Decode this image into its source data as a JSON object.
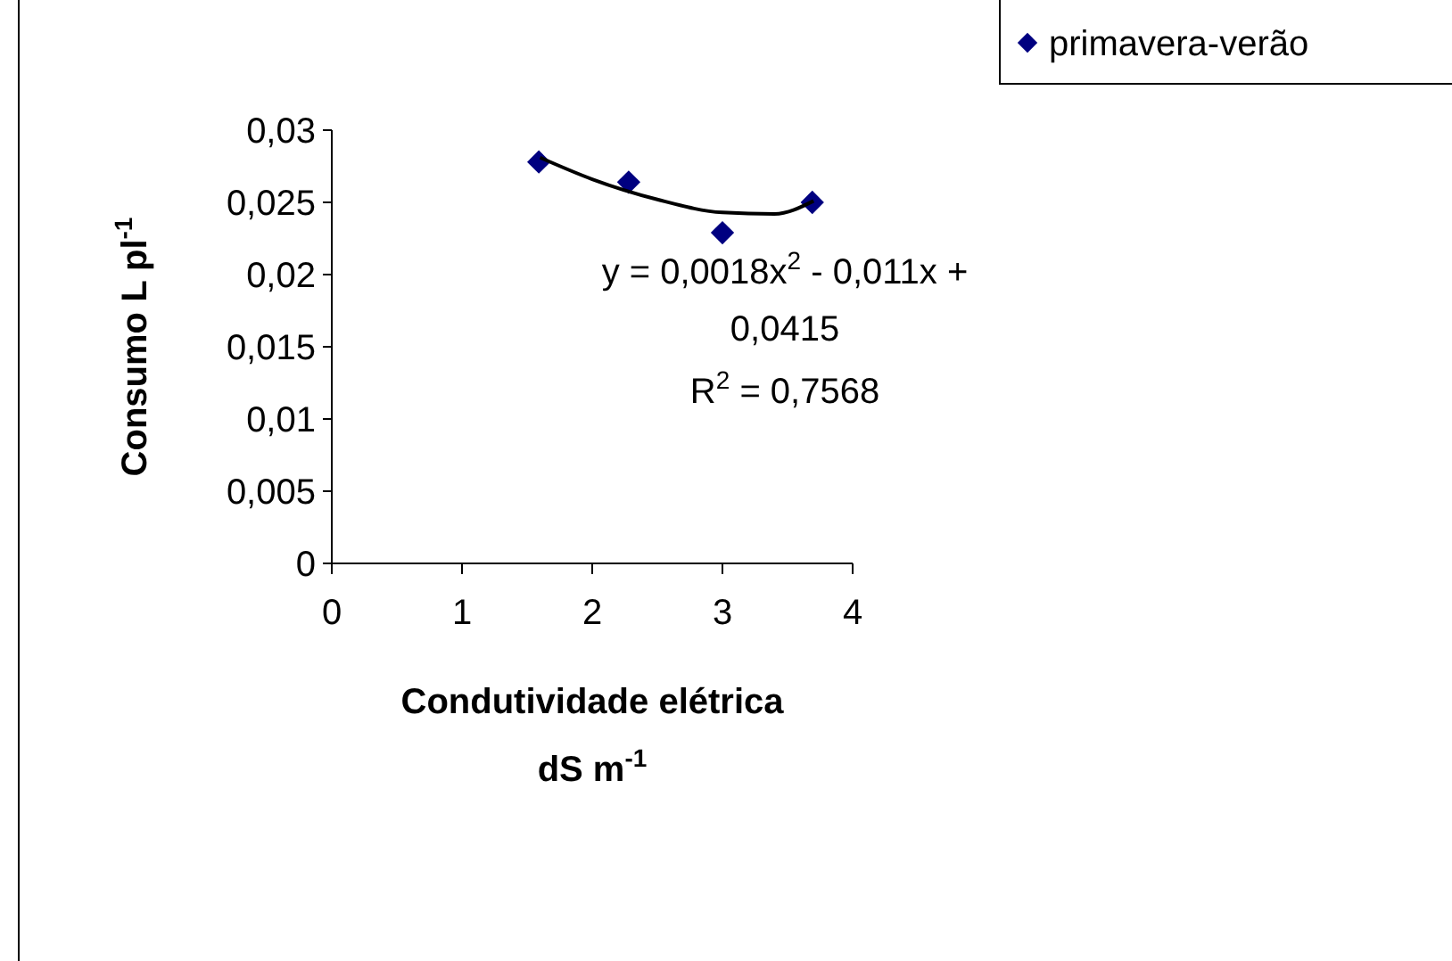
{
  "chart_data": {
    "type": "scatter",
    "ylabel": "Consumo L pl$^{-1}$",
    "xlabel": "Condutividade elétrica\ndS m$^{-1}$",
    "xlim": [
      0,
      4
    ],
    "xticks": [
      0,
      1,
      2,
      3,
      4
    ],
    "ylim": [
      0,
      0.03
    ],
    "yticks": [
      {
        "value": 0,
        "label": "0"
      },
      {
        "value": 0.005,
        "label": "0,005"
      },
      {
        "value": 0.01,
        "label": "0,01"
      },
      {
        "value": 0.015,
        "label": "0,015"
      },
      {
        "value": 0.02,
        "label": "0,02"
      },
      {
        "value": 0.025,
        "label": "0,025"
      },
      {
        "value": 0.03,
        "label": "0,03"
      }
    ],
    "grid": false,
    "legend": "top right",
    "marker": "diamond",
    "series": [
      {
        "name": "primavera-verão",
        "color": "#000080",
        "x": [
          1.59,
          2.28,
          3.0,
          3.69
        ],
        "values": [
          0.0278,
          0.0264,
          0.0229,
          0.025
        ]
      },
      {
        "type": "line",
        "color": "#000000",
        "line_style": "solid",
        "marker": "none",
        "x": [
          1.6,
          2.0,
          2.5,
          3.0,
          3.4,
          3.7
        ],
        "values": [
          0.0281,
          0.0266,
          0.0252,
          0.0243,
          0.0242,
          0.0251
        ]
      }
    ],
    "annotations": [
      "y = 0,0018x$^{2}$ - 0,011x +\n0,0415",
      "R$^{2}$ = 0,7568"
    ]
  }
}
